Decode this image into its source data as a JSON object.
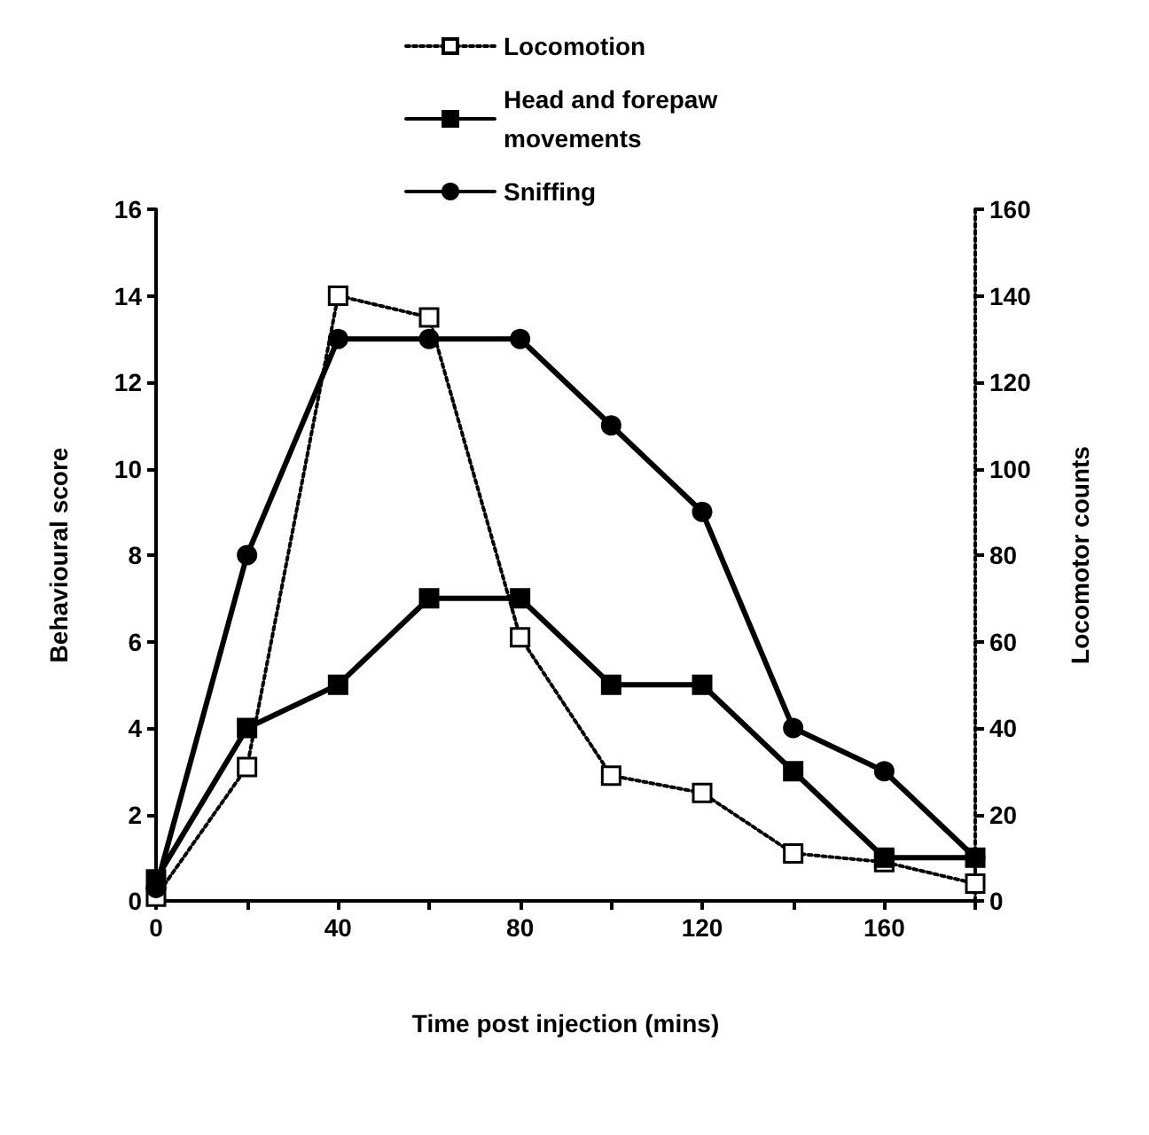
{
  "chart_data": {
    "type": "line",
    "xlabel": "Time post injection (mins)",
    "ylabel": "Behavioural score",
    "y2label": "Locomotor counts",
    "x": [
      0,
      20,
      40,
      60,
      80,
      100,
      120,
      140,
      160,
      180
    ],
    "series": [
      {
        "name": "Locomotion",
        "color": "#000000",
        "axis": "y2",
        "marker": "square",
        "line_style": "dotted",
        "values": [
          1,
          31,
          140,
          135,
          61,
          29,
          25,
          11,
          9,
          4
        ]
      },
      {
        "name": "Head and forepaw movements",
        "color": "#000000",
        "marker": "square",
        "line_style": "solid",
        "values": [
          0.5,
          4,
          5,
          7,
          7,
          5,
          5,
          3,
          1,
          1
        ]
      },
      {
        "name": "Sniffing",
        "color": "#000000",
        "marker": "circle",
        "line_style": "solid",
        "values": [
          0.3,
          8,
          13,
          13,
          13,
          11,
          9,
          4,
          3,
          1
        ]
      }
    ],
    "xlim": [
      0,
      180
    ],
    "xticks": [
      0,
      {
        "value": 20,
        "label": null
      },
      40,
      {
        "value": 60,
        "label": null
      },
      80,
      {
        "value": 100,
        "label": null
      },
      120,
      {
        "value": 140,
        "label": null
      },
      160,
      {
        "value": 180,
        "label": null
      }
    ],
    "ylim": [
      0,
      16
    ],
    "yticks": [
      0,
      2,
      4,
      6,
      8,
      10,
      12,
      14,
      16
    ],
    "y2lim": [
      0,
      160
    ],
    "y2ticks": [
      0,
      20,
      40,
      60,
      80,
      100,
      120,
      140,
      160
    ],
    "grid": false,
    "legend": "top"
  }
}
